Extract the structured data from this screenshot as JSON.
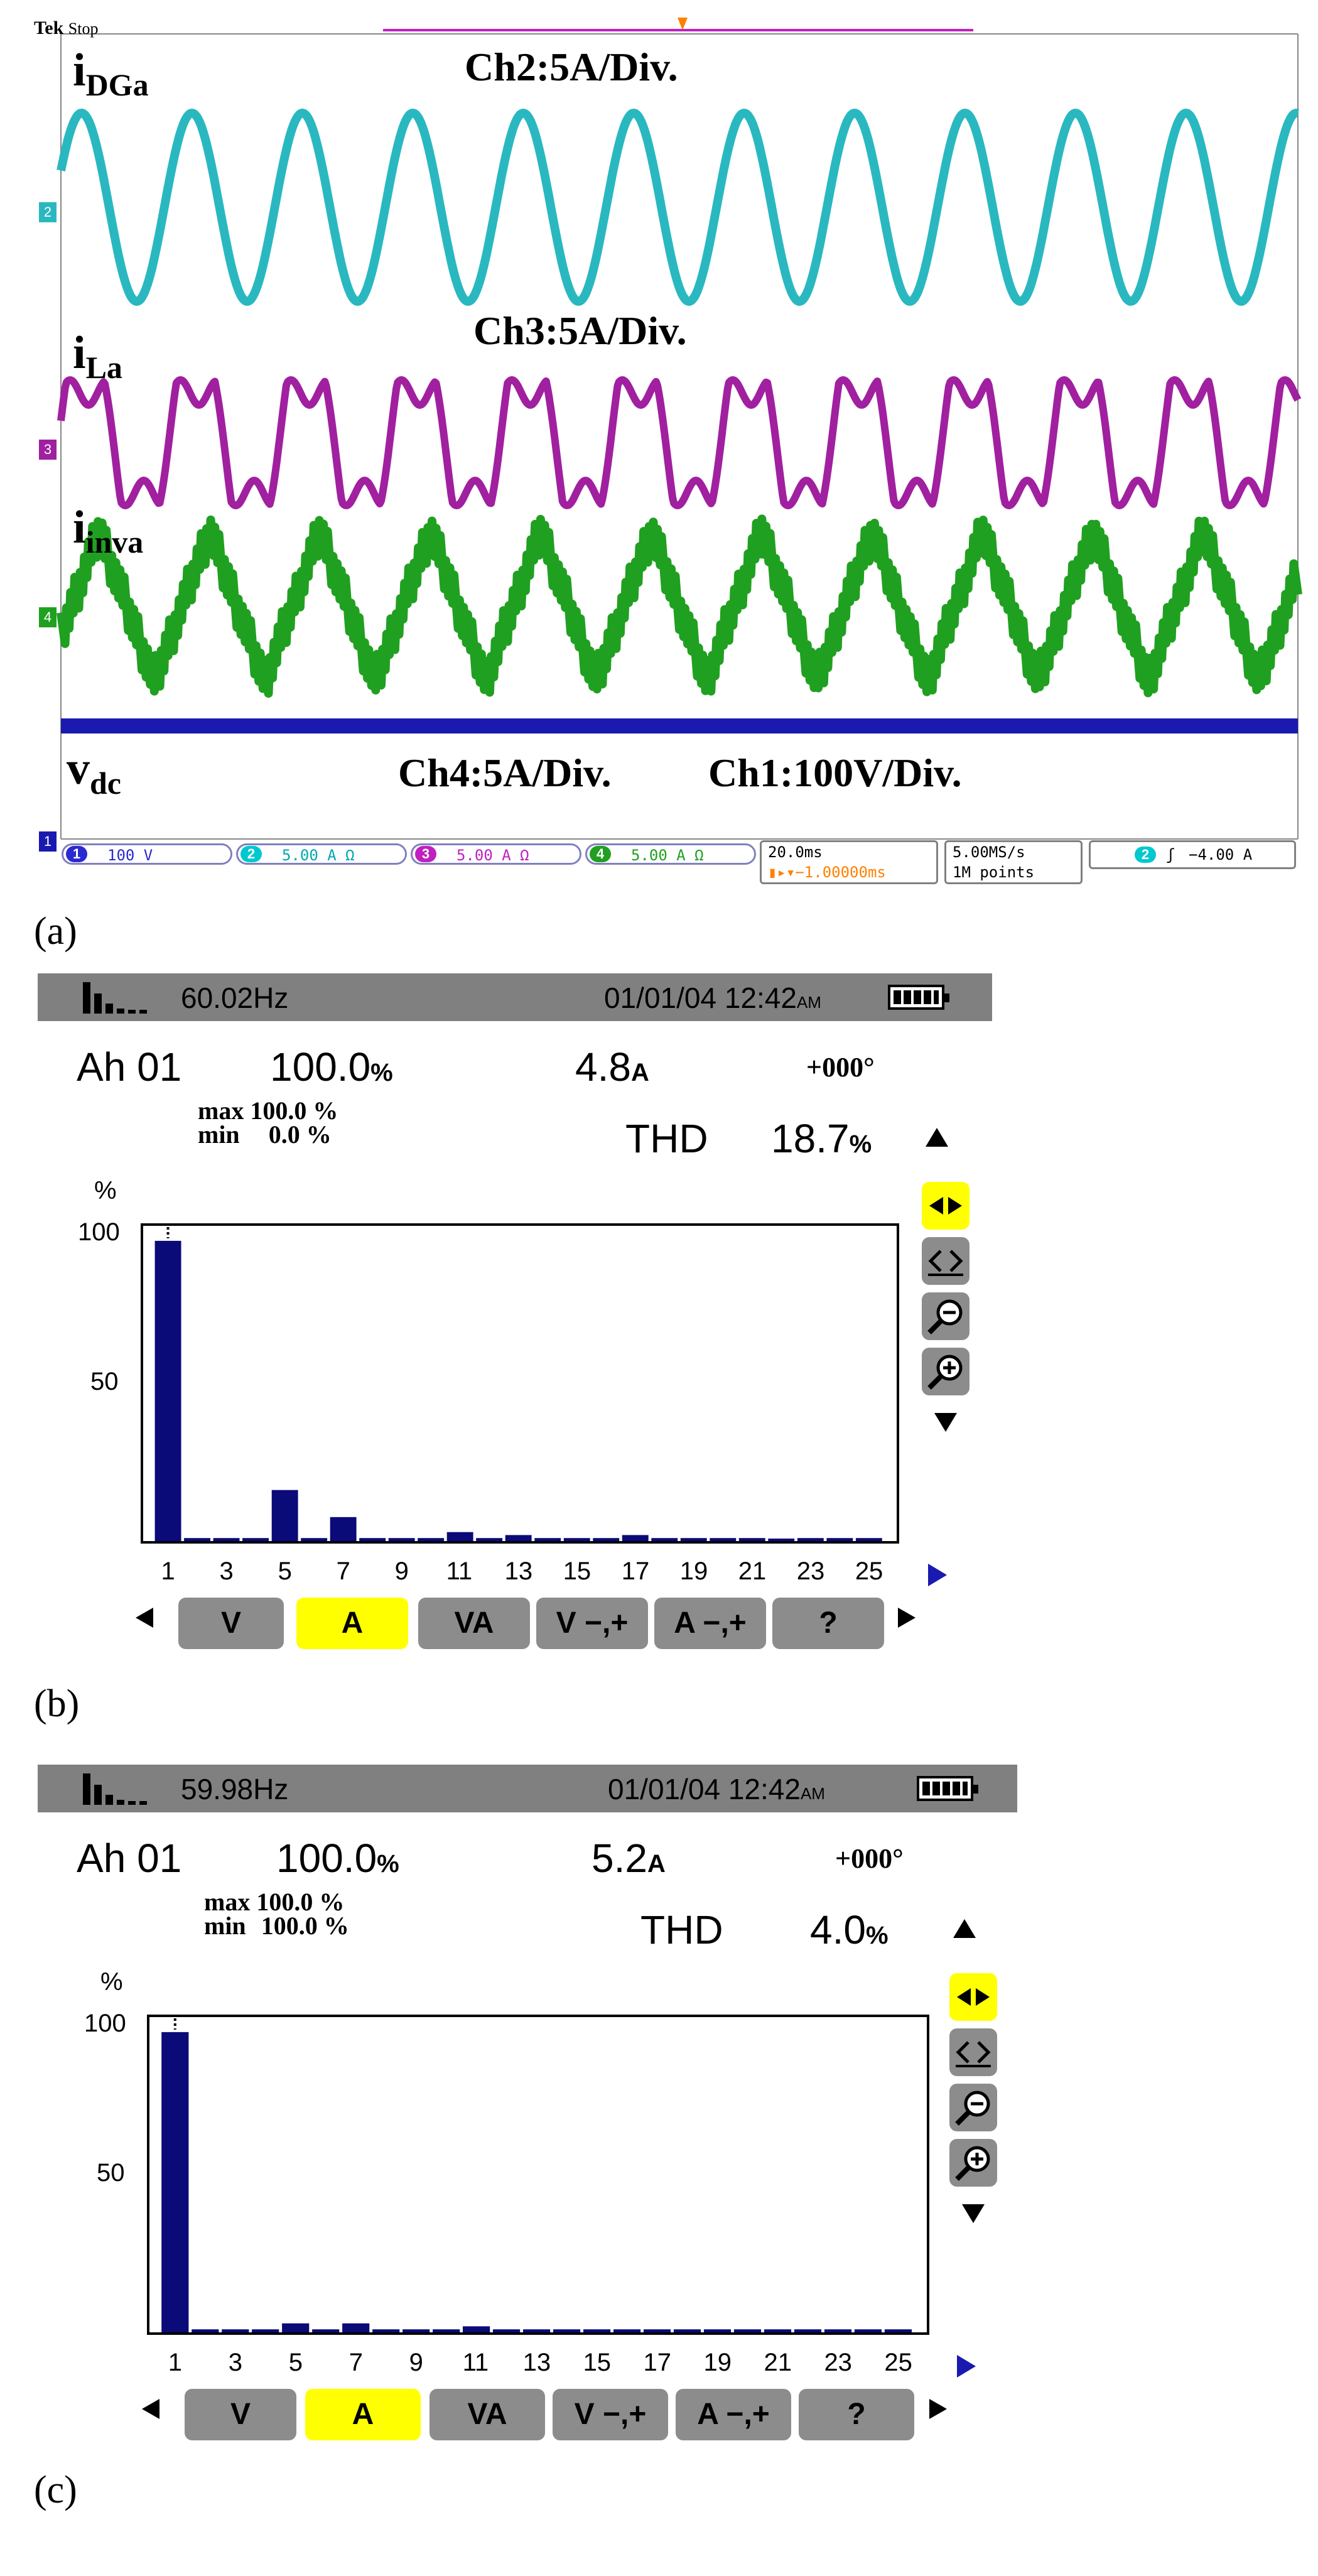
{
  "scope": {
    "brand": "Tek",
    "state": "Stop",
    "signals": {
      "dg_current": {
        "main": "i",
        "sub": "DGa"
      },
      "load_current": {
        "main": "i",
        "sub": "La"
      },
      "inverter_current": {
        "main": "i",
        "sub": "inva"
      },
      "dc_voltage": {
        "main": "v",
        "sub": "dc"
      }
    },
    "scale_labels": {
      "ch2": "Ch2:5A/Div.",
      "ch3": "Ch3:5A/Div.",
      "ch4": "Ch4:5A/Div.",
      "ch1": "Ch1:100V/Div."
    },
    "channel_markers": [
      "2",
      "3",
      "4",
      "1"
    ],
    "status_bar": {
      "channels": [
        {
          "num": "1",
          "setting": "100 V",
          "color": "#2a2ad0"
        },
        {
          "num": "2",
          "setting": "5.00 A Ω",
          "color": "#00c8d0"
        },
        {
          "num": "3",
          "setting": "5.00 A Ω",
          "color": "#c020c0"
        },
        {
          "num": "4",
          "setting": "5.00 A Ω",
          "color": "#20a020"
        }
      ],
      "timebase": "20.0ms",
      "trigger_delay": "−1.00000ms",
      "sample_rate": "5.00MS/s",
      "record_length": "1M points",
      "trigger_channel": "2",
      "trigger_level": "−4.00 A"
    },
    "trace_colors": {
      "ch1": "#1a1ab0",
      "ch2": "#2ab8c0",
      "ch3": "#a020a0",
      "ch4": "#20a020"
    }
  },
  "captions": {
    "a": "(a)",
    "b": "(b)",
    "c": "(c)"
  },
  "analyzer_b": {
    "frequency": "60.02Hz",
    "date": "01/01/04",
    "time": "12:42",
    "ampm": "AM",
    "harmonic": "Ah 01",
    "percent": "100.0",
    "percent_unit": "%",
    "current": "4.8",
    "current_unit": "A",
    "phase": "+000°",
    "max_label": "max",
    "max_value": "100.0 %",
    "min_label": "min",
    "min_value": "0.0 %",
    "thd_label": "THD",
    "thd_value": "18.7",
    "thd_unit": "%",
    "y_unit": "%",
    "y_ticks": [
      "100",
      "50"
    ],
    "x_ticks": [
      "1",
      "3",
      "5",
      "7",
      "9",
      "11",
      "13",
      "15",
      "17",
      "19",
      "21",
      "23",
      "25"
    ],
    "buttons": [
      "V",
      "A",
      "VA",
      "V −,+",
      "A −,+",
      "?"
    ],
    "active_button": "A"
  },
  "analyzer_c": {
    "frequency": "59.98Hz",
    "date": "01/01/04",
    "time": "12:42",
    "ampm": "AM",
    "harmonic": "Ah 01",
    "percent": "100.0",
    "percent_unit": "%",
    "current": "5.2",
    "current_unit": "A",
    "phase": "+000°",
    "max_label": "max",
    "max_value": "100.0 %",
    "min_label": "min",
    "min_value": "100.0 %",
    "thd_label": "THD",
    "thd_value": "4.0",
    "thd_unit": "%",
    "y_unit": "%",
    "y_ticks": [
      "100",
      "50"
    ],
    "x_ticks": [
      "1",
      "3",
      "5",
      "7",
      "9",
      "11",
      "13",
      "15",
      "17",
      "19",
      "21",
      "23",
      "25"
    ],
    "buttons": [
      "V",
      "A",
      "VA",
      "V −,+",
      "A −,+",
      "?"
    ],
    "active_button": "A"
  },
  "chart_data": [
    {
      "type": "bar",
      "panel": "b",
      "x": [
        1,
        2,
        3,
        4,
        5,
        6,
        7,
        8,
        9,
        10,
        11,
        12,
        13,
        14,
        15,
        16,
        17,
        18,
        19,
        20,
        21,
        22,
        23,
        24,
        25
      ],
      "values": [
        100,
        1,
        1,
        1,
        17,
        1,
        8,
        1,
        1,
        1,
        3,
        1,
        2,
        1,
        1,
        1,
        2,
        1,
        1,
        1,
        1,
        0,
        1,
        1,
        1
      ],
      "ylim": [
        0,
        105
      ],
      "ylabel": "%"
    },
    {
      "type": "bar",
      "panel": "c",
      "x": [
        1,
        2,
        3,
        4,
        5,
        6,
        7,
        8,
        9,
        10,
        11,
        12,
        13,
        14,
        15,
        16,
        17,
        18,
        19,
        20,
        21,
        22,
        23,
        24,
        25
      ],
      "values": [
        100,
        1,
        1,
        1,
        3,
        1,
        3,
        1,
        1,
        1,
        2,
        1,
        1,
        1,
        1,
        1,
        1,
        1,
        1,
        1,
        1,
        1,
        1,
        1,
        1
      ],
      "ylim": [
        0,
        105
      ],
      "ylabel": "%"
    }
  ]
}
